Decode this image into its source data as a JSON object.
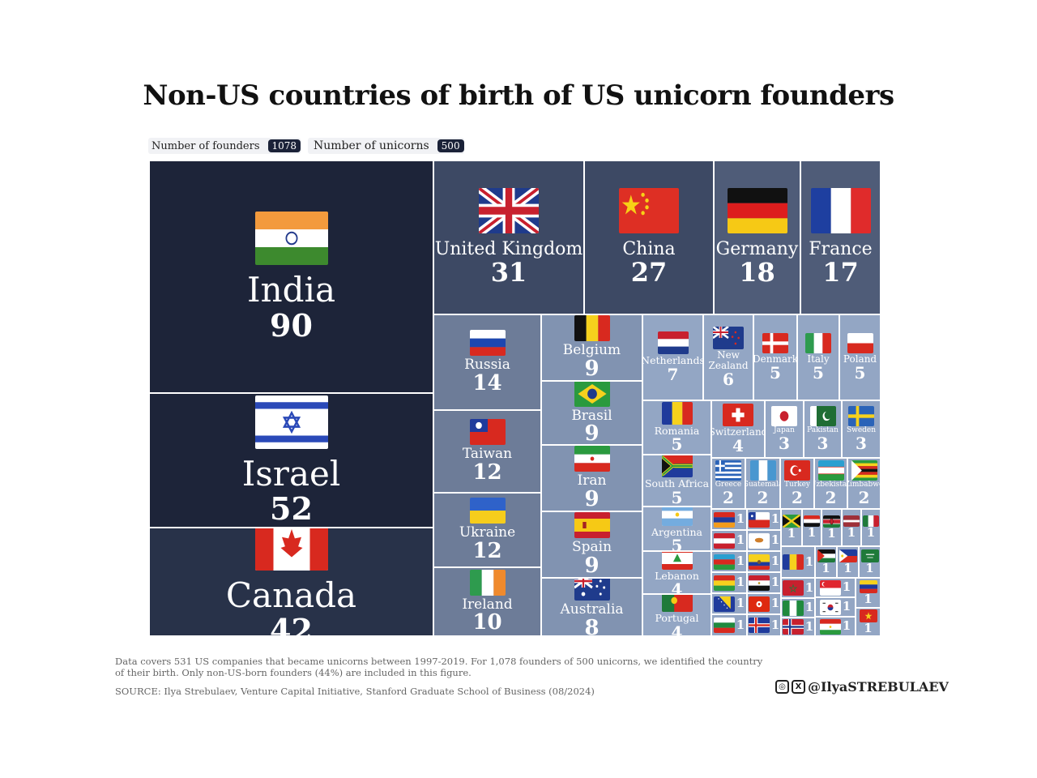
{
  "title": "Non-US countries of birth of US unicorn founders",
  "legend": {
    "founders_label": "Number of founders",
    "founders_value": "1078",
    "unicorns_label": "Number of unicorns",
    "unicorns_value": "500"
  },
  "footnote": {
    "line1": "Data covers 531 US companies that became unicorns between 1997-2019. For 1,078 founders of 500 unicorns, we identified the country",
    "line2": "of their birth. Only non-US-born founders (44%) are included in this figure.",
    "source": "SOURCE: Ilya Strebulaev, Venture Capital Initiative, Stanford Graduate School of Business (08/2024)"
  },
  "handle": "@IlyaSTREBULAEV",
  "colors": {
    "dark": "#1d2439",
    "dark2": "#283249",
    "mid": "#3d4964",
    "mid2": "#4f5c78",
    "light": "#6d7c98",
    "lighter": "#8193b1",
    "lightest": "#93a6c4"
  },
  "chart_data": {
    "type": "treemap",
    "title": "Non-US countries of birth of US unicorn founders",
    "unit": "founders",
    "series": [
      {
        "name": "India",
        "value": 90
      },
      {
        "name": "Israel",
        "value": 52
      },
      {
        "name": "Canada",
        "value": 42
      },
      {
        "name": "United Kingdom",
        "value": 31
      },
      {
        "name": "China",
        "value": 27
      },
      {
        "name": "Germany",
        "value": 18
      },
      {
        "name": "France",
        "value": 17
      },
      {
        "name": "Russia",
        "value": 14
      },
      {
        "name": "Taiwan",
        "value": 12
      },
      {
        "name": "Ukraine",
        "value": 12
      },
      {
        "name": "Ireland",
        "value": 10
      },
      {
        "name": "Belgium",
        "value": 9
      },
      {
        "name": "Brasil",
        "value": 9
      },
      {
        "name": "Iran",
        "value": 9
      },
      {
        "name": "Spain",
        "value": 9
      },
      {
        "name": "Australia",
        "value": 8
      },
      {
        "name": "Netherlands",
        "value": 7
      },
      {
        "name": "New Zealand",
        "value": 6
      },
      {
        "name": "Denmark",
        "value": 5
      },
      {
        "name": "Italy",
        "value": 5
      },
      {
        "name": "Poland",
        "value": 5
      },
      {
        "name": "Romania",
        "value": 5
      },
      {
        "name": "South Africa",
        "value": 5
      },
      {
        "name": "Argentina",
        "value": 5
      },
      {
        "name": "Switzerland",
        "value": 4
      },
      {
        "name": "Lebanon",
        "value": 4
      },
      {
        "name": "Portugal",
        "value": 4
      },
      {
        "name": "Japan",
        "value": 3
      },
      {
        "name": "Pakistan",
        "value": 3
      },
      {
        "name": "Sweden",
        "value": 3
      },
      {
        "name": "Greece",
        "value": 2
      },
      {
        "name": "Guatemala",
        "value": 2
      },
      {
        "name": "Turkey",
        "value": 2
      },
      {
        "name": "Uzbekistan",
        "value": 2
      },
      {
        "name": "Zimbabwe",
        "value": 2
      },
      {
        "name": "Armenia",
        "value": 1
      },
      {
        "name": "Chile",
        "value": 1
      },
      {
        "name": "Jamaica",
        "value": 1
      },
      {
        "name": "Iraq",
        "value": 1
      },
      {
        "name": "Kenya",
        "value": 1
      },
      {
        "name": "Latvia",
        "value": 1
      },
      {
        "name": "Mexico",
        "value": 1
      },
      {
        "name": "Austria",
        "value": 1
      },
      {
        "name": "Cyprus",
        "value": 1
      },
      {
        "name": "Azerbaijan",
        "value": 1
      },
      {
        "name": "Ecuador",
        "value": 1
      },
      {
        "name": "Moldova",
        "value": 1
      },
      {
        "name": "Palestine",
        "value": 1
      },
      {
        "name": "Philippines",
        "value": 1
      },
      {
        "name": "Saudi Arabia",
        "value": 1
      },
      {
        "name": "Bolivia",
        "value": 1
      },
      {
        "name": "Egypt",
        "value": 1
      },
      {
        "name": "Morocco",
        "value": 1
      },
      {
        "name": "Singapore",
        "value": 1
      },
      {
        "name": "Venezuela",
        "value": 1
      },
      {
        "name": "Bosnia",
        "value": 1
      },
      {
        "name": "Hong Kong",
        "value": 1
      },
      {
        "name": "Nigeria",
        "value": 1
      },
      {
        "name": "South Korea",
        "value": 1
      },
      {
        "name": "Bulgaria",
        "value": 1
      },
      {
        "name": "Iceland",
        "value": 1
      },
      {
        "name": "Norway",
        "value": 1
      },
      {
        "name": "Tajikistan",
        "value": 1
      },
      {
        "name": "Vietnam",
        "value": 1
      }
    ]
  }
}
